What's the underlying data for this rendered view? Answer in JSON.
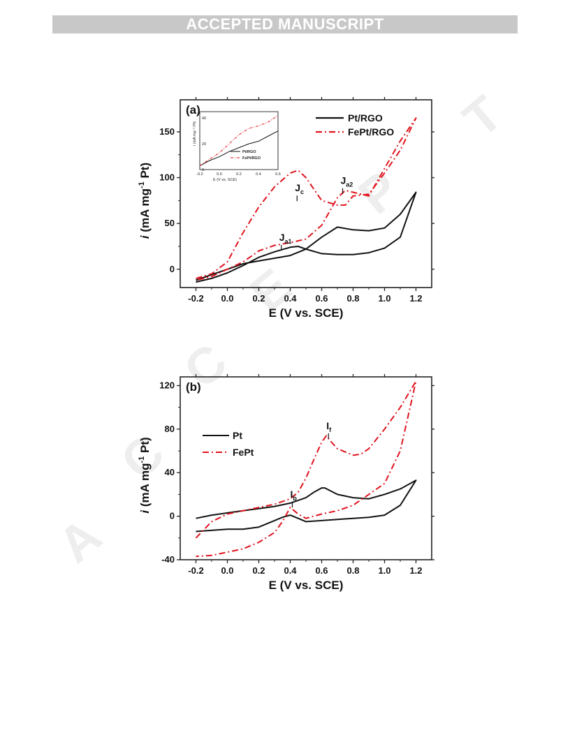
{
  "header": {
    "banner": "ACCEPTED MANUSCRIPT"
  },
  "colors": {
    "pt": "#111111",
    "fept": "#e0141e",
    "banner_bg": "#c8c8c8"
  },
  "chart_data": [
    {
      "type": "line",
      "panel_label": "(a)",
      "xlabel": "E (V vs. SCE)",
      "ylabel_parts": {
        "i": "i",
        "unit": " (mA mg",
        "sup": "-1",
        "tail": " Pt)"
      },
      "xlim": [
        -0.3,
        1.3
      ],
      "ylim": [
        -20,
        185
      ],
      "xticks": [
        -0.2,
        0.0,
        0.2,
        0.4,
        0.6,
        0.8,
        1.0,
        1.2
      ],
      "xtick_labels": [
        "-0.2",
        "0.0",
        "0.2",
        "0.4",
        "0.6",
        "0.8",
        "1.0",
        "1.2"
      ],
      "yticks": [
        0,
        50,
        100,
        150
      ],
      "ytick_labels": [
        "0",
        "50",
        "100",
        "150"
      ],
      "legend_position": "top-right",
      "annotations": [
        {
          "text": "J",
          "sub": "a1",
          "x": 0.33,
          "y": 31
        },
        {
          "text": "J",
          "sub": "c",
          "x": 0.43,
          "y": 85
        },
        {
          "text": "J",
          "sub": "a2",
          "x": 0.72,
          "y": 93
        }
      ],
      "series": [
        {
          "name": "Pt/RGO",
          "style": "solid",
          "color": "#111111",
          "x": [
            -0.2,
            -0.1,
            0.0,
            0.1,
            0.2,
            0.3,
            0.4,
            0.45,
            0.5,
            0.6,
            0.7,
            0.75,
            0.8,
            0.9,
            1.0,
            1.1,
            1.2,
            1.2,
            1.1,
            1.0,
            0.9,
            0.8,
            0.7,
            0.6,
            0.5,
            0.4,
            0.3,
            0.2,
            0.1,
            0.0,
            -0.1,
            -0.2
          ],
          "y": [
            -14,
            -10,
            -4,
            4,
            13,
            19,
            24,
            25,
            22,
            17,
            16,
            16,
            16,
            18,
            23,
            35,
            84,
            84,
            60,
            45,
            42,
            43,
            46,
            35,
            22,
            15,
            12,
            9,
            6,
            0,
            -6,
            -12
          ]
        },
        {
          "name": "FePt/RGO",
          "style": "dashdot",
          "color": "#e0141e",
          "x": [
            -0.2,
            -0.1,
            0.0,
            0.1,
            0.2,
            0.3,
            0.4,
            0.45,
            0.5,
            0.6,
            0.7,
            0.75,
            0.8,
            0.9,
            1.0,
            1.1,
            1.2,
            1.2,
            1.1,
            1.0,
            0.9,
            0.8,
            0.75,
            0.7,
            0.6,
            0.5,
            0.4,
            0.3,
            0.2,
            0.1,
            0.0,
            -0.1,
            -0.2
          ],
          "y": [
            -10,
            -5,
            8,
            40,
            68,
            90,
            105,
            108,
            100,
            75,
            70,
            70,
            80,
            82,
            105,
            130,
            165,
            165,
            140,
            110,
            80,
            84,
            86,
            78,
            48,
            33,
            29,
            26,
            20,
            8,
            0,
            -8,
            -12
          ]
        }
      ],
      "inset": {
        "xlabel": "E (V vs. SCE)",
        "ylabel": "i (mA mg⁻¹ Pt)",
        "xlim": [
          -0.2,
          0.6
        ],
        "ylim": [
          0,
          45
        ],
        "xticks": [
          -0.2,
          0.0,
          0.2,
          0.4,
          0.6
        ],
        "xtick_labels": [
          "-0.2",
          "0.0",
          "0.2",
          "0.4",
          "0.6"
        ],
        "yticks": [
          0,
          20,
          40
        ],
        "ytick_labels": [
          "0",
          "20",
          "40"
        ],
        "series": [
          {
            "name": "Pt/RGO",
            "style": "solid",
            "color": "#111111",
            "x": [
              -0.2,
              -0.1,
              0.0,
              0.1,
              0.2,
              0.3,
              0.4,
              0.5,
              0.6
            ],
            "y": [
              3,
              7,
              10,
              14,
              17,
              20,
              22,
              26,
              30
            ]
          },
          {
            "name": "FePt/RGO",
            "style": "dashdot",
            "color": "#e0141e",
            "x": [
              -0.2,
              -0.1,
              0.0,
              0.1,
              0.2,
              0.3,
              0.4,
              0.5,
              0.6
            ],
            "y": [
              3,
              8,
              13,
              20,
              27,
              32,
              34,
              37,
              42
            ]
          }
        ]
      }
    },
    {
      "type": "line",
      "panel_label": "(b)",
      "xlabel": "E (V vs. SCE)",
      "ylabel_parts": {
        "i": "i",
        "unit": " (mA mg",
        "sup": "-1",
        "tail": " Pt)"
      },
      "xlim": [
        -0.3,
        1.3
      ],
      "ylim": [
        -40,
        128
      ],
      "xticks": [
        -0.2,
        0.0,
        0.2,
        0.4,
        0.6,
        0.8,
        1.0,
        1.2
      ],
      "xtick_labels": [
        "-0.2",
        "0.0",
        "0.2",
        "0.4",
        "0.6",
        "0.8",
        "1.0",
        "1.2"
      ],
      "yticks": [
        -40,
        0,
        40,
        80,
        120
      ],
      "ytick_labels": [
        "-40",
        "0",
        "40",
        "80",
        "120"
      ],
      "legend_position": "center-left",
      "annotations": [
        {
          "text": "I",
          "sub": "f",
          "x": 0.63,
          "y": 80
        },
        {
          "text": "I",
          "sub": "b",
          "x": 0.4,
          "y": 17
        }
      ],
      "series": [
        {
          "name": "Pt",
          "style": "solid",
          "color": "#111111",
          "x": [
            -0.2,
            -0.1,
            0.0,
            0.1,
            0.2,
            0.3,
            0.4,
            0.5,
            0.55,
            0.6,
            0.62,
            0.7,
            0.8,
            0.9,
            1.0,
            1.1,
            1.2,
            1.2,
            1.1,
            1.0,
            0.9,
            0.8,
            0.7,
            0.6,
            0.5,
            0.45,
            0.4,
            0.35,
            0.3,
            0.2,
            0.1,
            0.0,
            -0.1,
            -0.2
          ],
          "y": [
            -2,
            1,
            3,
            5,
            7,
            9,
            12,
            17,
            22,
            26,
            26,
            20,
            17,
            16,
            20,
            25,
            33,
            33,
            10,
            1,
            -1,
            -2,
            -3,
            -4,
            -5,
            -2,
            1,
            -1,
            -4,
            -10,
            -12,
            -12,
            -13,
            -14
          ]
        },
        {
          "name": "FePt",
          "style": "dashdot",
          "color": "#e0141e",
          "x": [
            -0.2,
            -0.1,
            0.0,
            0.1,
            0.2,
            0.3,
            0.4,
            0.45,
            0.5,
            0.55,
            0.6,
            0.63,
            0.65,
            0.7,
            0.8,
            0.85,
            0.9,
            1.0,
            1.1,
            1.2,
            1.2,
            1.1,
            1.0,
            0.9,
            0.8,
            0.7,
            0.6,
            0.5,
            0.45,
            0.4,
            0.35,
            0.3,
            0.2,
            0.1,
            0.0,
            -0.1,
            -0.2
          ],
          "y": [
            -20,
            -5,
            2,
            5,
            8,
            11,
            16,
            22,
            35,
            52,
            68,
            74,
            70,
            62,
            56,
            57,
            62,
            80,
            100,
            124,
            124,
            60,
            30,
            20,
            10,
            5,
            2,
            -2,
            2,
            8,
            -5,
            -15,
            -24,
            -30,
            -33,
            -36,
            -37
          ]
        }
      ]
    }
  ],
  "watermark": {
    "visible_letters": [
      "A",
      "C",
      "C",
      "E",
      "P",
      "T"
    ],
    "color": "#dcdcdc"
  }
}
